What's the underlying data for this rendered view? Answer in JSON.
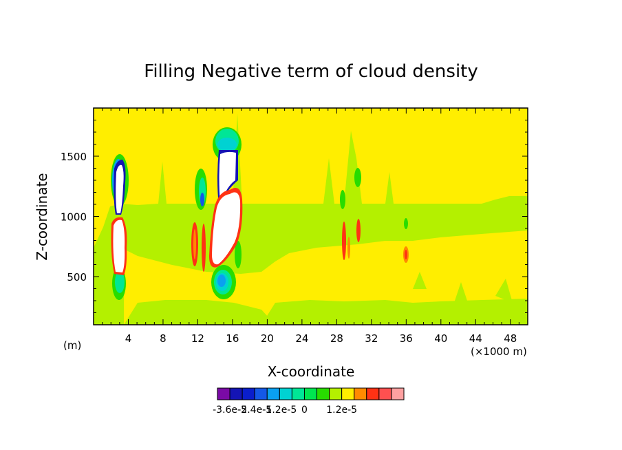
{
  "chart_data": {
    "type": "heatmap",
    "title": "Filling Negative term of cloud density",
    "xlabel": "X-coordinate",
    "ylabel": "Z-coordinate",
    "x_unit_left": "(m)",
    "x_unit_right": "(×1000 m)",
    "xlim": [
      0,
      50
    ],
    "ylim": [
      100,
      1900
    ],
    "x_ticks": [
      4,
      8,
      12,
      16,
      20,
      24,
      28,
      32,
      36,
      40,
      44,
      48
    ],
    "x_tick_labels": [
      "4",
      "8",
      "12",
      "16",
      "20",
      "24",
      "28",
      "32",
      "36",
      "40",
      "44",
      "48"
    ],
    "y_ticks": [
      500,
      1000,
      1500
    ],
    "y_tick_labels": [
      "500",
      "1000",
      "1500"
    ],
    "background_level": "0 to 6e-6 (yellow)",
    "colorbar": {
      "colors": [
        "#7a0aa6",
        "#1414b4",
        "#0a1ecc",
        "#1458e6",
        "#0aa0f0",
        "#00d2d2",
        "#00e696",
        "#00e650",
        "#28dc00",
        "#b4f000",
        "#ffee00",
        "#ff8a00",
        "#ff3214",
        "#ff5050",
        "#ffa0a0"
      ],
      "labels": [
        "-3.6e-5",
        "-2.4e-5",
        "-1.2e-5",
        "0",
        "1.2e-5"
      ]
    },
    "features": [
      {
        "x": 3,
        "z_range": [
          1150,
          1450
        ],
        "range": "≤ -3.6e-5 (white core, blue rim)"
      },
      {
        "x": 2.8,
        "z_range": [
          500,
          950
        ],
        "range": "≥ 1.2e-5 (white core, red rim)"
      },
      {
        "x": 14.8,
        "z_range": [
          1200,
          1600
        ],
        "range": "≤ -3.6e-5 (white core, blue rim)"
      },
      {
        "x": 15.2,
        "z_range": [
          450,
          1250
        ],
        "range": "≥ 1.2e-5 (white core, red rim)"
      },
      {
        "x": 11.5,
        "z_range": [
          600,
          950
        ],
        "range": "1.2e-5 (red)"
      },
      {
        "x": 29,
        "z_range": [
          650,
          950
        ],
        "range": "6e-6 to 1.2e-5"
      },
      {
        "x": 30.5,
        "z_range": [
          800,
          1000
        ],
        "range": "6e-6 to 1.2e-5"
      },
      {
        "x": 35.8,
        "z_range": [
          600,
          750
        ],
        "range": "6e-6 (orange)"
      }
    ]
  }
}
